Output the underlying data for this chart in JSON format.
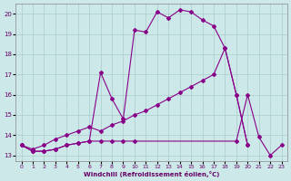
{
  "xlabel": "Windchill (Refroidissement éolien,°C)",
  "xlim": [
    -0.5,
    23.5
  ],
  "ylim": [
    12.7,
    20.5
  ],
  "xticks": [
    0,
    1,
    2,
    3,
    4,
    5,
    6,
    7,
    8,
    9,
    10,
    11,
    12,
    13,
    14,
    15,
    16,
    17,
    18,
    19,
    20,
    21,
    22,
    23
  ],
  "yticks": [
    13,
    14,
    15,
    16,
    17,
    18,
    19,
    20
  ],
  "bg_color": "#cce8e8",
  "grid_color": "#aacccc",
  "line_color": "#880088",
  "curve1_x": [
    0,
    1,
    2,
    3,
    4,
    5,
    6,
    7,
    8,
    9,
    10,
    11,
    12,
    13,
    14,
    15,
    16,
    17,
    18,
    19,
    20
  ],
  "curve1_y": [
    13.5,
    13.2,
    13.2,
    13.3,
    13.5,
    13.6,
    13.7,
    17.1,
    15.8,
    14.8,
    19.2,
    19.1,
    20.1,
    19.8,
    20.2,
    20.1,
    19.7,
    19.4,
    18.3,
    16.0,
    13.5
  ],
  "curve2_x": [
    0,
    1,
    2,
    3,
    4,
    5,
    6,
    7,
    8,
    9,
    10,
    19,
    20,
    21,
    22,
    23
  ],
  "curve2_y": [
    13.5,
    13.2,
    13.2,
    13.3,
    13.5,
    13.6,
    13.7,
    13.7,
    13.7,
    13.7,
    13.7,
    13.7,
    16.0,
    13.9,
    13.0,
    13.5
  ],
  "curve3_x": [
    0,
    1,
    2,
    3,
    4,
    5,
    6,
    7,
    8,
    9,
    10,
    11,
    12,
    13,
    14,
    15,
    16,
    17,
    18,
    19,
    20
  ],
  "curve3_y": [
    13.5,
    13.3,
    13.5,
    13.8,
    14.0,
    14.2,
    14.4,
    14.2,
    14.5,
    14.7,
    15.0,
    15.2,
    15.5,
    15.8,
    16.1,
    16.4,
    16.7,
    17.0,
    18.3,
    16.0,
    13.5
  ]
}
